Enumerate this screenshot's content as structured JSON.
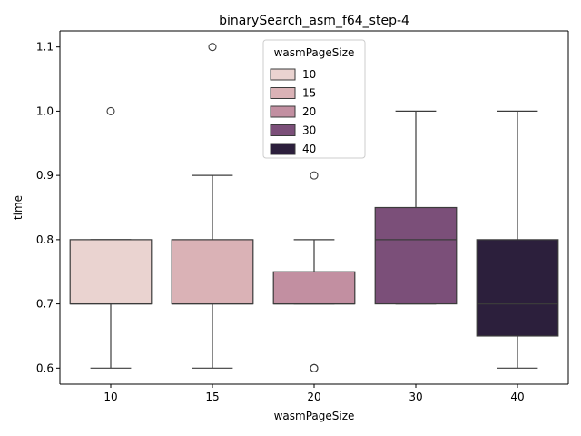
{
  "chart_data": {
    "type": "box",
    "title": "binarySearch_asm_f64_step-4",
    "xlabel": "wasmPageSize",
    "ylabel": "time",
    "categories": [
      "10",
      "15",
      "20",
      "30",
      "40"
    ],
    "ylim": [
      0.575,
      1.125
    ],
    "yticks": [
      "0.6",
      "0.7",
      "0.8",
      "0.9",
      "1.0",
      "1.1"
    ],
    "grid": false,
    "legend": {
      "title": "wasmPageSize",
      "placement": "top-center",
      "entries": [
        "10",
        "15",
        "20",
        "30",
        "40"
      ]
    },
    "boxes": [
      {
        "category": "10",
        "color": "#ead3d0",
        "q1": 0.7,
        "median": 0.7,
        "q3": 0.8,
        "whisker_low": 0.6,
        "whisker_high": 0.8,
        "outliers": [
          1.0
        ]
      },
      {
        "category": "15",
        "color": "#dab2b6",
        "q1": 0.7,
        "median": 0.7,
        "q3": 0.8,
        "whisker_low": 0.6,
        "whisker_high": 0.9,
        "outliers": [
          1.1
        ]
      },
      {
        "category": "20",
        "color": "#c28fa1",
        "q1": 0.7,
        "median": 0.7,
        "q3": 0.75,
        "whisker_low": 0.7,
        "whisker_high": 0.8,
        "outliers": [
          0.9,
          0.6,
          0.6
        ]
      },
      {
        "category": "30",
        "color": "#7b4f79",
        "q1": 0.7,
        "median": 0.8,
        "q3": 0.85,
        "whisker_low": 0.7,
        "whisker_high": 1.0,
        "outliers": []
      },
      {
        "category": "40",
        "color": "#2c1f3c",
        "q1": 0.65,
        "median": 0.7,
        "q3": 0.8,
        "whisker_low": 0.6,
        "whisker_high": 1.0,
        "outliers": []
      }
    ]
  }
}
